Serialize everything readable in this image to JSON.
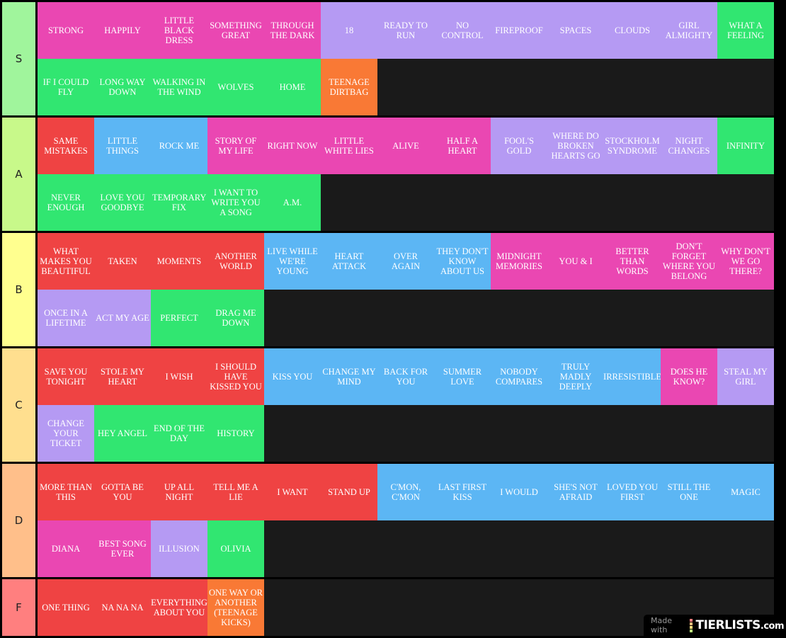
{
  "colors": {
    "P": "#ea47b2",
    "L": "#b59af3",
    "G": "#31e671",
    "O": "#f97935",
    "R": "#ef4343",
    "B": "#5cb6f4"
  },
  "tiers": [
    {
      "label": "S",
      "color": "#a0f59c",
      "items": [
        [
          "STRONG",
          "P"
        ],
        [
          "HAPPILY",
          "P"
        ],
        [
          "LITTLE BLACK DRESS",
          "P"
        ],
        [
          "SOMETHING GREAT",
          "P"
        ],
        [
          "THROUGH THE DARK",
          "P"
        ],
        [
          "18",
          "L"
        ],
        [
          "READY TO RUN",
          "L"
        ],
        [
          "NO CONTROL",
          "L"
        ],
        [
          "FIREPROOF",
          "L"
        ],
        [
          "SPACES",
          "L"
        ],
        [
          "CLOUDS",
          "L"
        ],
        [
          "GIRL ALMIGHTY",
          "L"
        ],
        [
          "WHAT A FEELING",
          "G"
        ],
        [
          "IF I COULD FLY",
          "G"
        ],
        [
          "LONG WAY DOWN",
          "G"
        ],
        [
          "WALKING IN THE WIND",
          "G"
        ],
        [
          "WOLVES",
          "G"
        ],
        [
          "HOME",
          "G"
        ],
        [
          "TEENAGE DIRTBAG",
          "O"
        ]
      ]
    },
    {
      "label": "A",
      "color": "#c8f98a",
      "items": [
        [
          "SAME MISTAKES",
          "R"
        ],
        [
          "LITTLE THINGS",
          "B"
        ],
        [
          "ROCK ME",
          "B"
        ],
        [
          "STORY OF MY LIFE",
          "P"
        ],
        [
          "RIGHT NOW",
          "P"
        ],
        [
          "LITTLE WHITE LIES",
          "P"
        ],
        [
          "ALIVE",
          "P"
        ],
        [
          "HALF A HEART",
          "P"
        ],
        [
          "FOOL'S GOLD",
          "L"
        ],
        [
          "WHERE DO BROKEN HEARTS GO",
          "L"
        ],
        [
          "STOCKHOLM SYNDROME",
          "L"
        ],
        [
          "NIGHT CHANGES",
          "L"
        ],
        [
          "INFINITY",
          "G"
        ],
        [
          "NEVER ENOUGH",
          "G"
        ],
        [
          "LOVE YOU GOODBYE",
          "G"
        ],
        [
          "TEMPORARY FIX",
          "G"
        ],
        [
          "I WANT TO WRITE YOU A SONG",
          "G"
        ],
        [
          "A.M.",
          "G"
        ]
      ]
    },
    {
      "label": "B",
      "color": "#ffff8f",
      "items": [
        [
          "WHAT MAKES YOU BEAUTIFUL",
          "R"
        ],
        [
          "TAKEN",
          "R"
        ],
        [
          "MOMENTS",
          "R"
        ],
        [
          "ANOTHER WORLD",
          "R"
        ],
        [
          "LIVE WHILE WE'RE YOUNG",
          "B"
        ],
        [
          "HEART ATTACK",
          "B"
        ],
        [
          "OVER AGAIN",
          "B"
        ],
        [
          "THEY DON'T KNOW ABOUT US",
          "B"
        ],
        [
          "MIDNIGHT MEMORIES",
          "P"
        ],
        [
          "YOU & I",
          "P"
        ],
        [
          "BETTER THAN WORDS",
          "P"
        ],
        [
          "DON'T FORGET WHERE YOU BELONG",
          "P"
        ],
        [
          "WHY DON'T WE GO THERE?",
          "P"
        ],
        [
          "ONCE IN A LIFETIME",
          "L"
        ],
        [
          "ACT MY AGE",
          "L"
        ],
        [
          "PERFECT",
          "G"
        ],
        [
          "DRAG ME DOWN",
          "G"
        ]
      ]
    },
    {
      "label": "C",
      "color": "#ffdf8f",
      "items": [
        [
          "SAVE YOU TONIGHT",
          "R"
        ],
        [
          "STOLE MY HEART",
          "R"
        ],
        [
          "I WISH",
          "R"
        ],
        [
          "I SHOULD HAVE KISSED YOU",
          "R"
        ],
        [
          "KISS YOU",
          "B"
        ],
        [
          "CHANGE MY MIND",
          "B"
        ],
        [
          "BACK FOR YOU",
          "B"
        ],
        [
          "SUMMER LOVE",
          "B"
        ],
        [
          "NOBODY COMPARES",
          "B"
        ],
        [
          "TRULY MADLY DEEPLY",
          "B"
        ],
        [
          "IRRESISTIBLE",
          "B"
        ],
        [
          "DOES HE KNOW?",
          "P"
        ],
        [
          "STEAL MY GIRL",
          "L"
        ],
        [
          "CHANGE YOUR TICKET",
          "L"
        ],
        [
          "HEY ANGEL",
          "G"
        ],
        [
          "END OF THE DAY",
          "G"
        ],
        [
          "HISTORY",
          "G"
        ]
      ]
    },
    {
      "label": "D",
      "color": "#ffbf8a",
      "items": [
        [
          "MORE THAN THIS",
          "R"
        ],
        [
          "GOTTA BE YOU",
          "R"
        ],
        [
          "UP ALL NIGHT",
          "R"
        ],
        [
          "TELL ME A LIE",
          "R"
        ],
        [
          "I WANT",
          "R"
        ],
        [
          "STAND UP",
          "R"
        ],
        [
          "C'MON, C'MON",
          "B"
        ],
        [
          "LAST FIRST KISS",
          "B"
        ],
        [
          "I WOULD",
          "B"
        ],
        [
          "SHE'S NOT AFRAID",
          "B"
        ],
        [
          "LOVED YOU FIRST",
          "B"
        ],
        [
          "STILL THE ONE",
          "B"
        ],
        [
          "MAGIC",
          "B"
        ],
        [
          "DIANA",
          "P"
        ],
        [
          "BEST SONG EVER",
          "P"
        ],
        [
          "ILLUSION",
          "L"
        ],
        [
          "OLIVIA",
          "G"
        ]
      ]
    },
    {
      "label": "F",
      "color": "#ff7f7f",
      "items": [
        [
          "ONE THING",
          "R"
        ],
        [
          "NA NA NA",
          "R"
        ],
        [
          "EVERYTHING ABOUT YOU",
          "R"
        ],
        [
          "ONE WAY OR ANOTHER (TEENAGE KICKS)",
          "O"
        ]
      ]
    }
  ],
  "badge": {
    "made_with": "Made with",
    "brand": "TIERLISTS",
    "tld": ".com"
  }
}
